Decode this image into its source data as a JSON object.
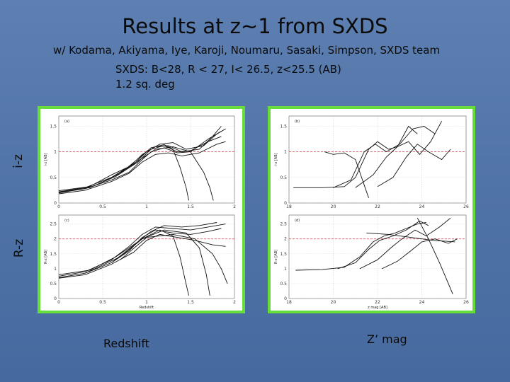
{
  "slide": {
    "title": "Results at z~1 from SXDS",
    "authors": "w/ Kodama, Akiyama, Iye, Karoji, Noumaru, Sasaki, Simpson, SXDS team",
    "criteria": "SXDS: B<28,  R < 27,   I< 26.5,  z<25.5 (AB)",
    "area": "1.2 sq. deg",
    "row_label_top": "i-z",
    "row_label_bottom": "R-z",
    "xlabel_left": "Redshift",
    "xlabel_right": "Z’ mag"
  },
  "chart_data": [
    {
      "type": "line",
      "panel": "(a)",
      "xlim": [
        0,
        2
      ],
      "ylim": [
        0,
        1.7
      ],
      "xticks": [
        "0",
        "0.5",
        "1",
        "1.5",
        "2"
      ],
      "yticks": [
        "0",
        "0.5",
        "1",
        "1.5"
      ],
      "ylabel": "i-z [AB]",
      "xlabel": "",
      "series": [
        {
          "values": [
            [
              0,
              0.2
            ],
            [
              0.3,
              0.28
            ],
            [
              0.6,
              0.45
            ],
            [
              0.8,
              0.6
            ],
            [
              0.95,
              0.85
            ],
            [
              1.05,
              1.0
            ],
            [
              1.2,
              1.08
            ],
            [
              1.35,
              0.98
            ],
            [
              1.5,
              1.0
            ],
            [
              1.7,
              1.25
            ],
            [
              1.85,
              1.4
            ]
          ]
        },
        {
          "values": [
            [
              0,
              0.22
            ],
            [
              0.3,
              0.3
            ],
            [
              0.6,
              0.5
            ],
            [
              0.8,
              0.7
            ],
            [
              0.95,
              0.95
            ],
            [
              1.1,
              1.1
            ],
            [
              1.25,
              1.12
            ],
            [
              1.4,
              1.0
            ],
            [
              1.6,
              1.05
            ],
            [
              1.75,
              1.3
            ],
            [
              1.85,
              1.5
            ]
          ]
        },
        {
          "values": [
            [
              0,
              0.18
            ],
            [
              0.3,
              0.25
            ],
            [
              0.6,
              0.42
            ],
            [
              0.8,
              0.58
            ],
            [
              0.95,
              0.8
            ],
            [
              1.1,
              0.95
            ],
            [
              1.25,
              0.98
            ],
            [
              1.4,
              0.92
            ],
            [
              1.6,
              0.98
            ],
            [
              1.8,
              1.15
            ],
            [
              1.9,
              1.2
            ]
          ]
        },
        {
          "values": [
            [
              0,
              0.24
            ],
            [
              0.35,
              0.32
            ],
            [
              0.6,
              0.55
            ],
            [
              0.85,
              0.75
            ],
            [
              1.0,
              1.0
            ],
            [
              1.15,
              1.15
            ],
            [
              1.3,
              1.18
            ],
            [
              1.45,
              1.05
            ],
            [
              1.65,
              1.12
            ],
            [
              1.8,
              1.35
            ],
            [
              1.9,
              1.45
            ]
          ]
        },
        {
          "values": [
            [
              0,
              0.2
            ],
            [
              0.35,
              0.3
            ],
            [
              0.65,
              0.52
            ],
            [
              0.9,
              0.8
            ],
            [
              1.05,
              1.05
            ],
            [
              1.2,
              1.12
            ],
            [
              1.35,
              1.0
            ],
            [
              1.5,
              1.02
            ],
            [
              1.7,
              1.2
            ],
            [
              1.85,
              1.3
            ]
          ]
        },
        {
          "values": [
            [
              0,
              0.21
            ],
            [
              0.4,
              0.33
            ],
            [
              0.7,
              0.58
            ],
            [
              0.9,
              0.86
            ],
            [
              1.05,
              1.08
            ],
            [
              1.2,
              1.14
            ],
            [
              1.3,
              1.05
            ],
            [
              1.38,
              0.7
            ],
            [
              1.45,
              0.3
            ],
            [
              1.48,
              0.05
            ]
          ]
        },
        {
          "values": [
            [
              0.6,
              0.5
            ],
            [
              0.9,
              0.82
            ],
            [
              1.1,
              1.05
            ],
            [
              1.3,
              1.1
            ],
            [
              1.5,
              1.0
            ],
            [
              1.65,
              0.6
            ],
            [
              1.72,
              0.3
            ],
            [
              1.76,
              0.05
            ]
          ]
        }
      ],
      "reference_line": 1.0
    },
    {
      "type": "line",
      "panel": "(b)",
      "xlim": [
        18,
        26
      ],
      "ylim": [
        0,
        1.7
      ],
      "xticks": [
        "18",
        "20",
        "22",
        "24",
        "26"
      ],
      "yticks": [
        "0",
        "0.5",
        "1",
        "1.5"
      ],
      "ylabel": "i-z [AB]",
      "xlabel": "",
      "series": [
        {
          "values": [
            [
              18.2,
              0.3
            ],
            [
              19.5,
              0.3
            ],
            [
              20.5,
              0.32
            ],
            [
              21.0,
              0.5
            ],
            [
              21.6,
              1.05
            ],
            [
              22.0,
              1.2
            ],
            [
              22.5,
              1.05
            ],
            [
              22.9,
              1.1
            ],
            [
              23.4,
              1.5
            ],
            [
              23.8,
              1.35
            ]
          ]
        },
        {
          "values": [
            [
              20.0,
              0.3
            ],
            [
              20.8,
              0.45
            ],
            [
              21.4,
              1.0
            ],
            [
              21.9,
              1.15
            ],
            [
              22.4,
              1.0
            ],
            [
              23.0,
              1.15
            ],
            [
              23.6,
              1.45
            ],
            [
              24.1,
              1.5
            ],
            [
              24.6,
              1.35
            ]
          ]
        },
        {
          "values": [
            [
              21.0,
              0.3
            ],
            [
              21.8,
              0.55
            ],
            [
              22.4,
              0.9
            ],
            [
              22.9,
              1.1
            ],
            [
              23.4,
              1.2
            ],
            [
              23.9,
              0.95
            ],
            [
              24.4,
              1.2
            ],
            [
              24.9,
              1.6
            ]
          ]
        },
        {
          "values": [
            [
              22.0,
              0.32
            ],
            [
              22.7,
              0.5
            ],
            [
              23.3,
              0.9
            ],
            [
              23.8,
              1.15
            ],
            [
              24.3,
              1.0
            ],
            [
              24.9,
              0.85
            ],
            [
              25.3,
              1.05
            ]
          ]
        },
        {
          "values": [
            [
              19.6,
              1.0
            ],
            [
              20.0,
              0.95
            ],
            [
              20.5,
              0.98
            ],
            [
              21.0,
              0.85
            ],
            [
              21.4,
              0.35
            ],
            [
              21.6,
              0.1
            ]
          ]
        }
      ],
      "reference_line": 1.0
    },
    {
      "type": "line",
      "panel": "(c)",
      "xlim": [
        0,
        2
      ],
      "ylim": [
        0,
        2.8
      ],
      "xticks": [
        "0",
        "0.5",
        "1",
        "1.5",
        "2"
      ],
      "yticks": [
        "0",
        "0.5",
        "1",
        "1.5",
        "2",
        "2.5"
      ],
      "ylabel": "R-z [AB]",
      "xlabel": "Redshift",
      "series": [
        {
          "values": [
            [
              0,
              0.7
            ],
            [
              0.3,
              0.85
            ],
            [
              0.6,
              1.2
            ],
            [
              0.8,
              1.6
            ],
            [
              0.95,
              2.05
            ],
            [
              1.1,
              2.3
            ],
            [
              1.3,
              2.2
            ],
            [
              1.5,
              2.15
            ],
            [
              1.7,
              2.25
            ],
            [
              1.85,
              2.35
            ]
          ]
        },
        {
          "values": [
            [
              0,
              0.75
            ],
            [
              0.3,
              0.9
            ],
            [
              0.6,
              1.3
            ],
            [
              0.8,
              1.75
            ],
            [
              0.95,
              2.15
            ],
            [
              1.1,
              2.4
            ],
            [
              1.3,
              2.35
            ],
            [
              1.5,
              2.3
            ],
            [
              1.7,
              2.4
            ],
            [
              1.9,
              2.5
            ]
          ]
        },
        {
          "values": [
            [
              0,
              0.68
            ],
            [
              0.3,
              0.8
            ],
            [
              0.6,
              1.15
            ],
            [
              0.85,
              1.55
            ],
            [
              1.0,
              1.95
            ],
            [
              1.15,
              2.15
            ],
            [
              1.35,
              2.05
            ],
            [
              1.55,
              1.95
            ],
            [
              1.75,
              1.8
            ],
            [
              1.9,
              1.75
            ]
          ]
        },
        {
          "values": [
            [
              0,
              0.8
            ],
            [
              0.35,
              0.95
            ],
            [
              0.65,
              1.4
            ],
            [
              0.9,
              1.9
            ],
            [
              1.05,
              2.25
            ],
            [
              1.2,
              2.45
            ],
            [
              1.4,
              2.4
            ],
            [
              1.6,
              2.45
            ],
            [
              1.8,
              2.55
            ]
          ]
        },
        {
          "values": [
            [
              0.3,
              0.85
            ],
            [
              0.7,
              1.4
            ],
            [
              0.95,
              2.0
            ],
            [
              1.15,
              2.3
            ],
            [
              1.3,
              2.1
            ],
            [
              1.38,
              1.4
            ],
            [
              1.44,
              0.6
            ],
            [
              1.48,
              0.1
            ]
          ]
        },
        {
          "values": [
            [
              0.6,
              1.2
            ],
            [
              0.95,
              2.0
            ],
            [
              1.2,
              2.3
            ],
            [
              1.45,
              2.2
            ],
            [
              1.6,
              1.7
            ],
            [
              1.68,
              0.8
            ],
            [
              1.72,
              0.1
            ]
          ]
        },
        {
          "values": [
            [
              0.7,
              1.3
            ],
            [
              1.0,
              2.05
            ],
            [
              1.3,
              2.15
            ],
            [
              1.55,
              2.0
            ],
            [
              1.75,
              1.5
            ],
            [
              1.85,
              1.0
            ],
            [
              1.92,
              0.5
            ]
          ]
        }
      ],
      "reference_line": 2.0
    },
    {
      "type": "line",
      "panel": "(d)",
      "xlim": [
        18,
        26
      ],
      "ylim": [
        0,
        2.8
      ],
      "xticks": [
        "18",
        "20",
        "22",
        "24",
        "26"
      ],
      "yticks": [
        "0",
        "0.5",
        "1",
        "1.5",
        "2",
        "2.5"
      ],
      "ylabel": "R-z [AB]",
      "xlabel": "z mag [AB]",
      "series": [
        {
          "values": [
            [
              18.3,
              0.95
            ],
            [
              19.5,
              0.97
            ],
            [
              20.5,
              1.05
            ],
            [
              21.2,
              1.4
            ],
            [
              21.8,
              1.9
            ],
            [
              22.3,
              2.1
            ],
            [
              22.8,
              2.2
            ],
            [
              23.3,
              2.35
            ],
            [
              23.8,
              2.5
            ],
            [
              24.2,
              2.55
            ]
          ]
        },
        {
          "values": [
            [
              20.2,
              1.0
            ],
            [
              21.0,
              1.2
            ],
            [
              21.6,
              1.65
            ],
            [
              22.1,
              1.95
            ],
            [
              22.7,
              2.1
            ],
            [
              23.3,
              2.3
            ],
            [
              23.9,
              2.6
            ],
            [
              24.3,
              2.45
            ]
          ]
        },
        {
          "values": [
            [
              21.2,
              1.0
            ],
            [
              22.0,
              1.3
            ],
            [
              22.6,
              1.7
            ],
            [
              23.1,
              2.0
            ],
            [
              23.7,
              2.3
            ],
            [
              24.2,
              2.1
            ],
            [
              24.8,
              2.4
            ],
            [
              25.3,
              2.7
            ]
          ]
        },
        {
          "values": [
            [
              22.2,
              1.0
            ],
            [
              22.9,
              1.25
            ],
            [
              23.5,
              1.6
            ],
            [
              24.0,
              1.9
            ],
            [
              24.6,
              2.0
            ],
            [
              25.2,
              1.85
            ],
            [
              25.6,
              2.0
            ]
          ]
        },
        {
          "values": [
            [
              21.5,
              2.2
            ],
            [
              22.5,
              2.15
            ],
            [
              23.5,
              2.05
            ],
            [
              24.5,
              1.95
            ],
            [
              25.5,
              1.9
            ]
          ]
        },
        {
          "values": [
            [
              23.8,
              2.7
            ],
            [
              24.3,
              2.0
            ],
            [
              24.8,
              1.2
            ],
            [
              25.2,
              0.5
            ],
            [
              25.4,
              0.15
            ]
          ]
        }
      ],
      "reference_line": 2.0
    }
  ]
}
